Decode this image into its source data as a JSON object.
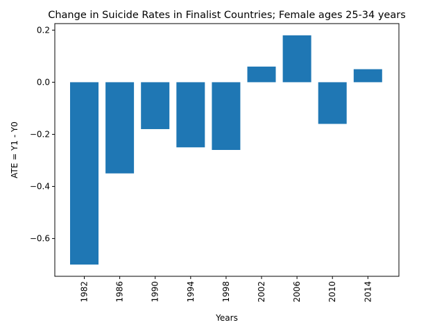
{
  "chart_data": {
    "type": "bar",
    "title": "Change in Suicide Rates in Finalist Countries; Female ages 25-34 years",
    "xlabel": "Years",
    "ylabel": "ATE = Y1 - Y0",
    "categories": [
      "1982",
      "1986",
      "1990",
      "1994",
      "1998",
      "2002",
      "2006",
      "2010",
      "2014"
    ],
    "values": [
      -0.7,
      -0.35,
      -0.18,
      -0.25,
      -0.26,
      0.06,
      0.18,
      -0.16,
      0.05
    ],
    "ylim": [
      -0.745,
      0.225
    ],
    "yticks": [
      -0.6,
      -0.4,
      -0.2,
      0.0,
      0.2
    ],
    "ytick_labels": [
      "−0.6",
      "−0.4",
      "−0.2",
      "0.0",
      "0.2"
    ],
    "bar_color": "#1f77b4",
    "grid": false,
    "legend": "none"
  }
}
